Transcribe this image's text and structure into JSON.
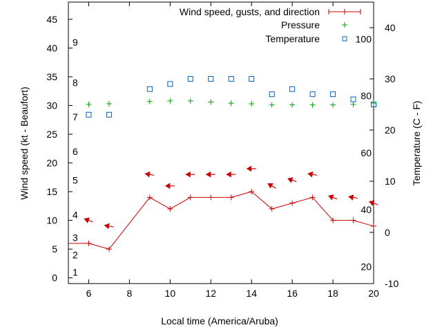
{
  "chart_data": {
    "type": "line",
    "xlabel": "Local time (America/Aruba)",
    "ylabel": "Wind speed (kt - Beaufort)",
    "y2label": "Temperature (C - F)",
    "xlim": [
      5,
      20
    ],
    "ylim": [
      -1,
      48
    ],
    "y2lim": [
      -10,
      45
    ],
    "x_ticks": [
      6,
      8,
      10,
      12,
      14,
      16,
      18,
      20
    ],
    "y_ticks": [
      0,
      5,
      10,
      15,
      20,
      25,
      30,
      35,
      40,
      45
    ],
    "y2_ticks": [
      -10,
      0,
      10,
      20,
      30,
      40
    ],
    "beaufort_labels": [
      {
        "label": "1",
        "kt": 1
      },
      {
        "label": "2",
        "kt": 4
      },
      {
        "label": "3",
        "kt": 7
      },
      {
        "label": "4",
        "kt": 11
      },
      {
        "label": "5",
        "kt": 17
      },
      {
        "label": "6",
        "kt": 22
      },
      {
        "label": "7",
        "kt": 28
      },
      {
        "label": "8",
        "kt": 34
      },
      {
        "label": "9",
        "kt": 41
      }
    ],
    "fahrenheit_labels": [
      {
        "label": "20",
        "c": -6.67
      },
      {
        "label": "40",
        "c": 4.44
      },
      {
        "label": "60",
        "c": 15.56
      },
      {
        "label": "80",
        "c": 26.67
      },
      {
        "label": "100",
        "c": 37.78
      }
    ],
    "legend_position": "top-right",
    "series": [
      {
        "name": "Wind speed, gusts, and direction",
        "color": "#cc0000",
        "style": "line+points",
        "x": [
          5,
          6,
          7,
          9,
          10,
          11,
          12,
          13,
          14,
          15,
          16,
          17,
          18,
          19,
          20
        ],
        "values": [
          6,
          6,
          5,
          14,
          12,
          14,
          14,
          14,
          15,
          12,
          13,
          14,
          10,
          10,
          9
        ],
        "arrow_x": [
          6,
          7,
          9,
          10,
          11,
          12,
          13,
          14,
          15,
          16,
          17,
          18,
          19,
          20
        ],
        "arrow_y": [
          10,
          9,
          18,
          16,
          18,
          18,
          18,
          19,
          16,
          17,
          18,
          14,
          14,
          13
        ],
        "arrow_dir_deg": [
          70,
          80,
          80,
          90,
          90,
          90,
          90,
          90,
          60,
          70,
          80,
          70,
          80,
          70
        ]
      },
      {
        "name": "Pressure",
        "color": "#00a000",
        "style": "plus",
        "x": [
          6,
          7,
          9,
          10,
          11,
          12,
          13,
          14,
          15,
          16,
          17,
          18,
          19,
          20
        ],
        "values": [
          30.2,
          30.3,
          30.7,
          30.8,
          30.8,
          30.6,
          30.4,
          30.3,
          30.1,
          30.1,
          30.1,
          30.1,
          30.2,
          30.4
        ]
      },
      {
        "name": "Temperature",
        "color": "#0060c0",
        "style": "square",
        "axis": "y2",
        "x": [
          6,
          7,
          9,
          10,
          11,
          12,
          13,
          14,
          15,
          16,
          17,
          18,
          19,
          20
        ],
        "values": [
          23,
          23,
          28,
          29,
          30,
          30,
          30,
          30,
          27,
          28,
          27,
          27,
          26,
          25
        ]
      }
    ]
  }
}
